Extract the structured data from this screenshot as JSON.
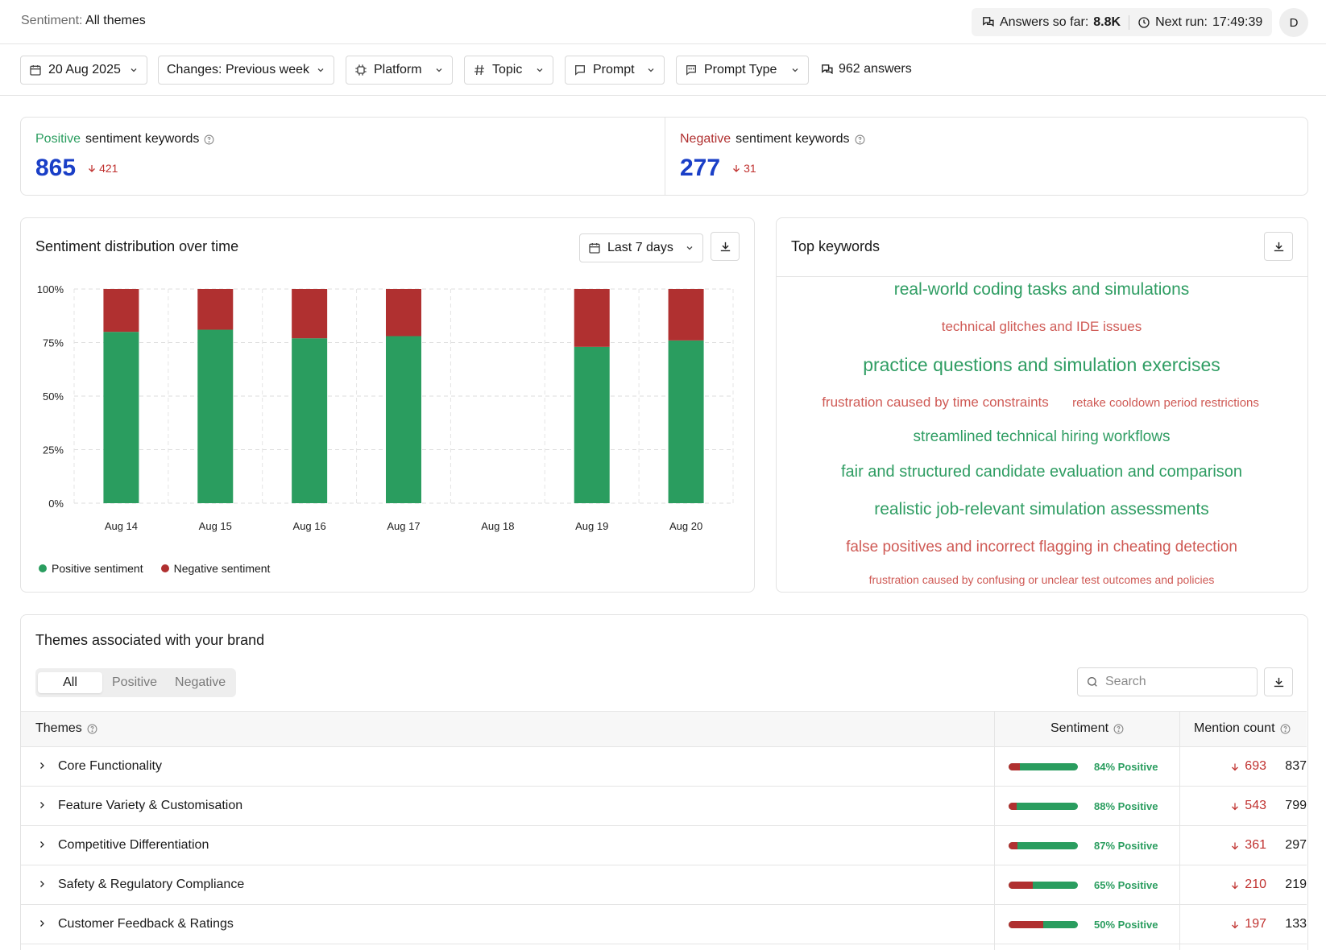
{
  "header": {
    "crumb_key": "Sentiment:",
    "crumb_value": "All themes",
    "answers_label": "Answers so far:",
    "answers_value": "8.8K",
    "next_run_label": "Next run:",
    "next_run_value": "17:49:39",
    "avatar_initial": "D"
  },
  "filters": {
    "date": "20 Aug 2025",
    "changes": "Changes: Previous week",
    "platform": "Platform",
    "topic": "Topic",
    "prompt": "Prompt",
    "prompt_type": "Prompt Type",
    "answers_count": "962 answers"
  },
  "summary": {
    "positive": {
      "label_colored": "Positive",
      "label_rest": "sentiment keywords",
      "value": "865",
      "delta": "421"
    },
    "negative": {
      "label_colored": "Negative",
      "label_rest": "sentiment keywords",
      "value": "277",
      "delta": "31"
    }
  },
  "distribution_card": {
    "title": "Sentiment distribution over time",
    "range_label": "Last 7 days",
    "legend_positive": "Positive sentiment",
    "legend_negative": "Negative sentiment"
  },
  "chart_data": {
    "type": "bar",
    "stacked": true,
    "categories": [
      "Aug 14",
      "Aug 15",
      "Aug 16",
      "Aug 17",
      "Aug 18",
      "Aug 19",
      "Aug 20"
    ],
    "series": [
      {
        "name": "Positive sentiment",
        "color": "#2a9d5f",
        "values": [
          80,
          81,
          77,
          78,
          null,
          73,
          76
        ]
      },
      {
        "name": "Negative sentiment",
        "color": "#b03030",
        "values": [
          20,
          19,
          23,
          22,
          null,
          27,
          24
        ]
      }
    ],
    "yticks": [
      "0%",
      "25%",
      "50%",
      "75%",
      "100%"
    ],
    "ylim": [
      0,
      100
    ],
    "grid": true,
    "legend_position": "bottom-left"
  },
  "keywords_card": {
    "title": "Top keywords",
    "items": [
      {
        "text": "real-world coding tasks and simulations",
        "tone": "positive"
      },
      {
        "text": "technical glitches and IDE issues",
        "tone": "negative"
      },
      {
        "text": "practice questions and simulation exercises",
        "tone": "positive"
      },
      {
        "text": "frustration caused by time constraints",
        "tone": "negative"
      },
      {
        "text": "retake cooldown period restrictions",
        "tone": "negative"
      },
      {
        "text": "streamlined technical hiring workflows",
        "tone": "positive"
      },
      {
        "text": "fair and structured candidate evaluation and comparison",
        "tone": "positive"
      },
      {
        "text": "realistic job-relevant simulation assessments",
        "tone": "positive"
      },
      {
        "text": "false positives and incorrect flagging in cheating detection",
        "tone": "negative"
      },
      {
        "text": "frustration caused by confusing or unclear test outcomes and policies",
        "tone": "negative"
      }
    ]
  },
  "themes": {
    "title": "Themes associated with your brand",
    "tabs": [
      "All",
      "Positive",
      "Negative"
    ],
    "search_placeholder": "Search",
    "col_themes": "Themes",
    "col_sentiment": "Sentiment",
    "col_mentions": "Mention count",
    "rows": [
      {
        "name": "Core Functionality",
        "positive_pct": 84,
        "pct_label": "84% Positive",
        "change": "693",
        "count": "837"
      },
      {
        "name": "Feature Variety & Customisation",
        "positive_pct": 88,
        "pct_label": "88% Positive",
        "change": "543",
        "count": "799"
      },
      {
        "name": "Competitive Differentiation",
        "positive_pct": 87,
        "pct_label": "87% Positive",
        "change": "361",
        "count": "297"
      },
      {
        "name": "Safety & Regulatory Compliance",
        "positive_pct": 65,
        "pct_label": "65% Positive",
        "change": "210",
        "count": "219"
      },
      {
        "name": "Customer Feedback & Ratings",
        "positive_pct": 50,
        "pct_label": "50% Positive",
        "change": "197",
        "count": "133"
      }
    ]
  },
  "colors": {
    "positive": "#2a9d5f",
    "negative": "#b03030",
    "accent_number": "#1a3fc7",
    "keyword_positive": "#2f9d63",
    "keyword_negative": "#cf5a55"
  }
}
